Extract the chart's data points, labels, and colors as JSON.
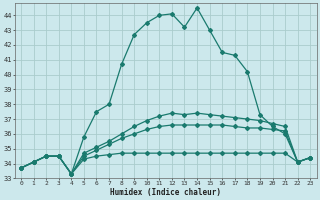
{
  "xlabel": "Humidex (Indice chaleur)",
  "xlim": [
    -0.5,
    23.5
  ],
  "ylim": [
    33,
    44.8
  ],
  "yticks": [
    33,
    34,
    35,
    36,
    37,
    38,
    39,
    40,
    41,
    42,
    43,
    44
  ],
  "xticks": [
    0,
    1,
    2,
    3,
    4,
    5,
    6,
    7,
    8,
    9,
    10,
    11,
    12,
    13,
    14,
    15,
    16,
    17,
    18,
    19,
    20,
    21,
    22,
    23
  ],
  "background_color": "#cce8ec",
  "grid_color": "#aacccc",
  "line_color": "#1a7a6e",
  "series1": [
    33.7,
    34.1,
    34.5,
    34.5,
    33.3,
    35.8,
    37.5,
    38.0,
    40.7,
    42.7,
    43.5,
    44.0,
    44.1,
    43.2,
    44.5,
    43.0,
    41.5,
    41.3,
    40.2,
    37.3,
    36.5,
    36.0,
    34.1,
    34.4
  ],
  "series2": [
    33.7,
    34.1,
    34.5,
    34.5,
    33.3,
    34.3,
    34.5,
    34.6,
    34.7,
    34.7,
    34.7,
    34.7,
    34.7,
    34.7,
    34.7,
    34.7,
    34.7,
    34.7,
    34.7,
    34.7,
    34.7,
    34.7,
    34.1,
    34.4
  ],
  "series3": [
    33.7,
    34.1,
    34.5,
    34.5,
    33.3,
    34.5,
    34.9,
    35.3,
    35.7,
    36.0,
    36.3,
    36.5,
    36.6,
    36.6,
    36.6,
    36.6,
    36.6,
    36.5,
    36.4,
    36.4,
    36.3,
    36.2,
    34.1,
    34.4
  ],
  "series4": [
    33.7,
    34.1,
    34.5,
    34.5,
    33.3,
    34.7,
    35.1,
    35.5,
    36.0,
    36.5,
    36.9,
    37.2,
    37.4,
    37.3,
    37.4,
    37.3,
    37.2,
    37.1,
    37.0,
    36.9,
    36.7,
    36.5,
    34.1,
    34.4
  ]
}
